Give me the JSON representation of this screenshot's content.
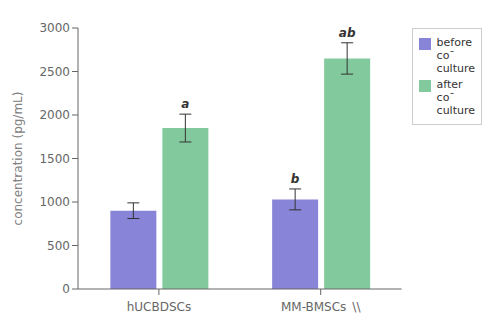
{
  "chart_data": {
    "type": "bar",
    "categories": [
      "hUCBDSCs",
      "MM-BMSCs"
    ],
    "series": [
      {
        "name": "before\nco¯\nculture",
        "color": "#8884d8",
        "values": [
          900,
          1030
        ],
        "errors": [
          90,
          120
        ]
      },
      {
        "name": "after\nco¯\nculture",
        "color": "#82ca9d",
        "values": [
          1850,
          2650
        ],
        "errors": [
          160,
          180
        ]
      }
    ],
    "ylabel": "concentration (pg/mL)",
    "ylim": [
      0,
      3000
    ],
    "yticks": [
      0,
      500,
      1000,
      1500,
      2000,
      2500,
      3000
    ],
    "grid": false,
    "legend": "upper right",
    "annotations": [
      {
        "text": "a",
        "category": "hUCBDSCs",
        "series": "after\nco¯\nculture"
      },
      {
        "text": "b",
        "category": "MM-BMSCs",
        "series": "before\nco¯\nculture"
      },
      {
        "text": "ab",
        "category": "MM-BMSCs",
        "series": "after\nco¯\nculture"
      },
      {
        "text": "\\\\",
        "category": "MM-BMSCs"
      }
    ]
  }
}
